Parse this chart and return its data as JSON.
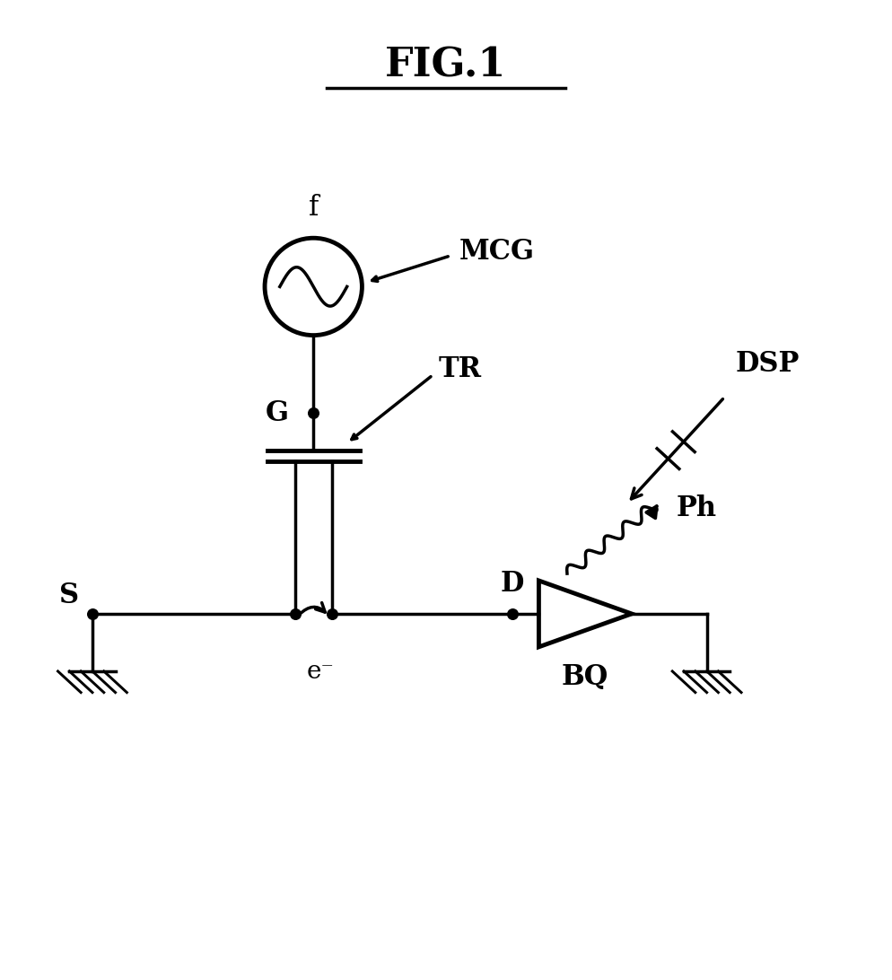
{
  "title": "FIG.1",
  "bg_color": "#ffffff",
  "fg_color": "#000000",
  "figsize": [
    9.94,
    10.92
  ],
  "dpi": 100,
  "labels": {
    "fig_title": "FIG.1",
    "MCG": "MCG",
    "f": "f",
    "TR": "TR",
    "G": "G",
    "S": "S",
    "D": "D",
    "e_minus": "e⁻",
    "BQ": "BQ",
    "Ph": "Ph",
    "DSP": "DSP"
  }
}
